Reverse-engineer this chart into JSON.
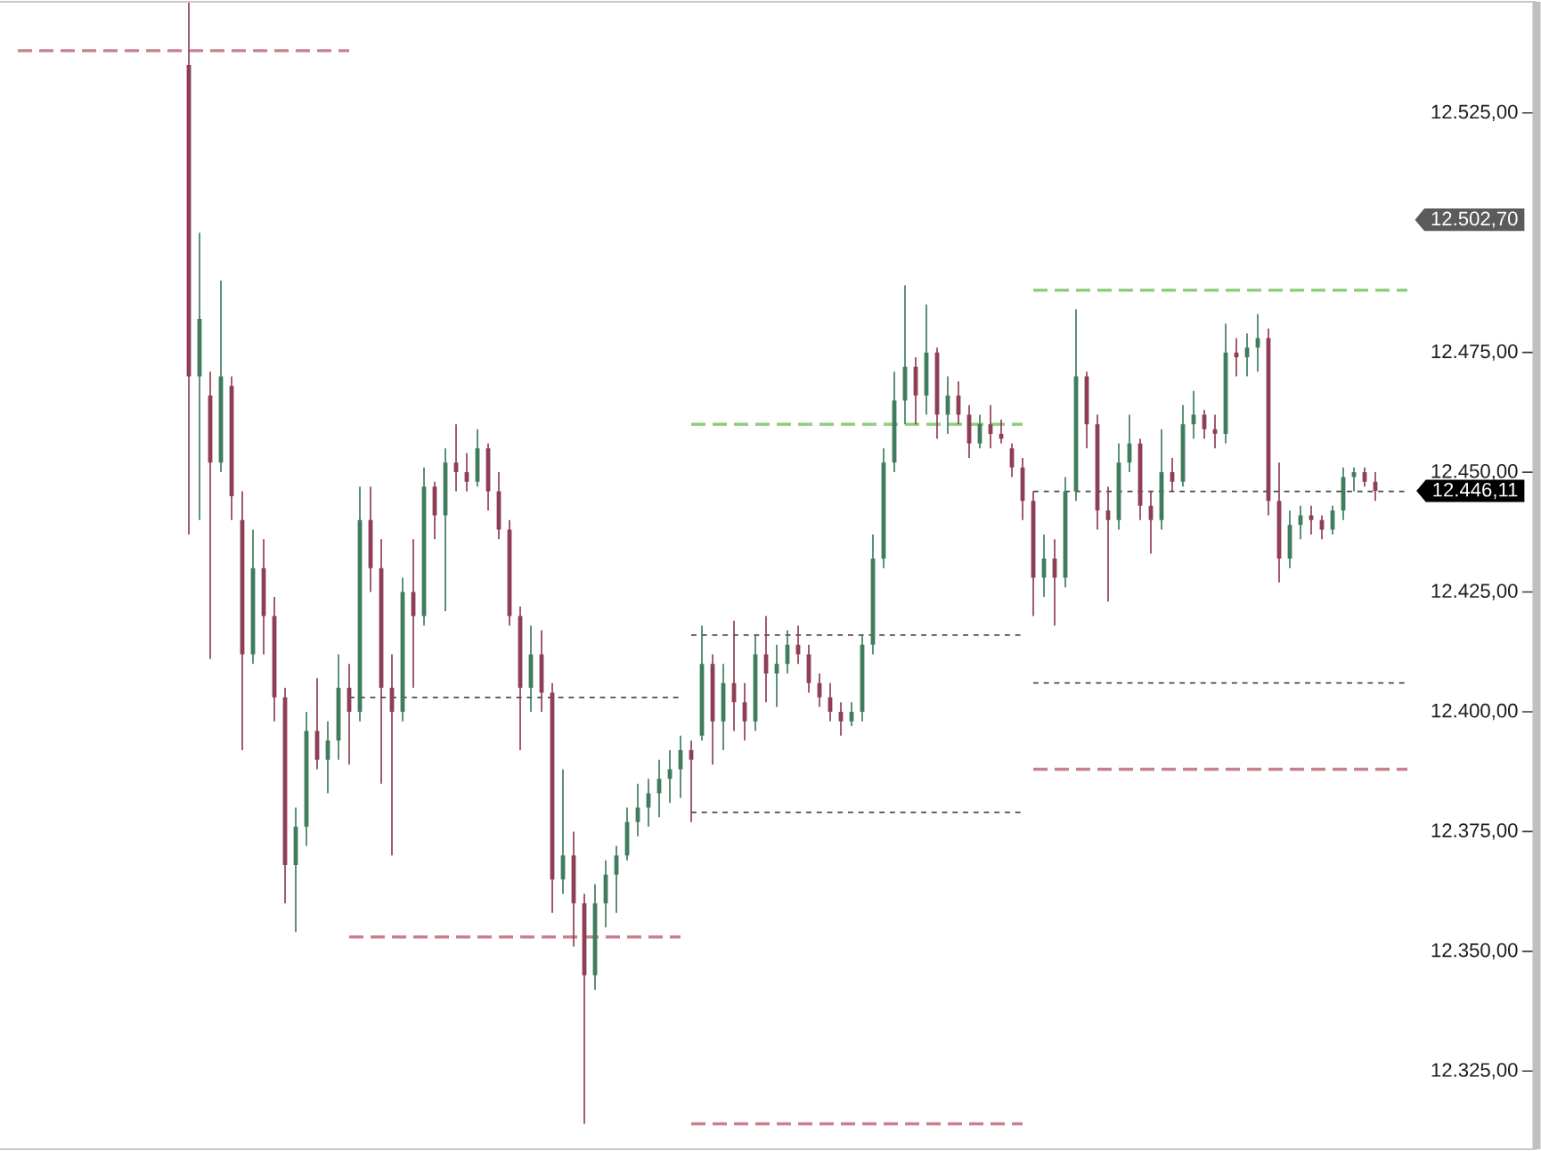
{
  "chart_data": {
    "type": "candlestick",
    "categories": [
      null,
      null,
      null,
      null,
      null,
      null,
      null,
      null,
      null,
      null,
      null,
      null,
      null,
      null,
      null,
      null,
      null,
      null,
      null,
      null,
      null,
      null,
      null,
      null,
      null,
      null,
      null,
      null,
      null,
      null,
      null,
      null,
      null,
      null,
      null,
      null,
      null,
      null,
      null,
      null,
      null,
      null,
      null,
      null,
      null,
      null,
      null,
      null,
      null,
      null,
      null,
      null,
      null,
      null,
      null,
      null,
      null,
      null,
      null,
      null,
      null,
      null,
      null,
      null,
      null,
      null,
      null,
      null,
      null,
      null,
      null,
      null,
      null,
      null,
      null,
      null,
      null,
      null,
      null,
      null,
      null,
      null,
      null,
      null,
      null,
      null,
      null,
      null,
      null,
      null,
      null,
      null,
      null,
      null,
      null,
      null,
      null,
      null,
      null,
      null,
      null,
      null,
      null,
      null,
      null,
      null,
      null,
      null,
      null,
      null,
      null,
      null,
      null,
      null,
      null,
      null,
      null,
      null,
      null,
      null,
      null,
      null,
      null,
      null,
      null,
      null,
      null,
      null,
      null,
      null,
      null
    ],
    "ohlc": [
      null,
      null,
      null,
      null,
      null,
      null,
      null,
      null,
      null,
      null,
      null,
      null,
      null,
      null,
      null,
      null,
      [
        12535,
        12548,
        12437,
        12470
      ],
      [
        12470,
        12500,
        12440,
        12482
      ],
      [
        12466,
        12471,
        12411,
        12452
      ],
      [
        12452,
        12490,
        12450,
        12470
      ],
      [
        12468,
        12470,
        12440,
        12445
      ],
      [
        12440,
        12446,
        12392,
        12412
      ],
      [
        12412,
        12438,
        12410,
        12430
      ],
      [
        12430,
        12436,
        12412,
        12420
      ],
      [
        12420,
        12424,
        12398,
        12403
      ],
      [
        12403,
        12405,
        12360,
        12368
      ],
      [
        12368,
        12380,
        12354,
        12376
      ],
      [
        12376,
        12400,
        12372,
        12396
      ],
      [
        12396,
        12407,
        12388,
        12390
      ],
      [
        12390,
        12398,
        12383,
        12394
      ],
      [
        12394,
        12412,
        12390,
        12405
      ],
      [
        12405,
        12410,
        12389,
        12400
      ],
      [
        12400,
        12447,
        12398,
        12440
      ],
      [
        12440,
        12447,
        12425,
        12430
      ],
      [
        12430,
        12436,
        12385,
        12405
      ],
      [
        12405,
        12412,
        12370,
        12400
      ],
      [
        12400,
        12428,
        12398,
        12425
      ],
      [
        12425,
        12436,
        12405,
        12420
      ],
      [
        12420,
        12451,
        12418,
        12447
      ],
      [
        12447,
        12448,
        12436,
        12441
      ],
      [
        12441,
        12455,
        12421,
        12452
      ],
      [
        12452,
        12460,
        12446,
        12450
      ],
      [
        12450,
        12454,
        12446,
        12448
      ],
      [
        12448,
        12459,
        12447,
        12455
      ],
      [
        12455,
        12456,
        12442,
        12446
      ],
      [
        12446,
        12450,
        12436,
        12438
      ],
      [
        12438,
        12440,
        12418,
        12420
      ],
      [
        12420,
        12422,
        12392,
        12405
      ],
      [
        12405,
        12418,
        12400,
        12412
      ],
      [
        12412,
        12417,
        12400,
        12404
      ],
      [
        12404,
        12406,
        12358,
        12365
      ],
      [
        12365,
        12388,
        12362,
        12370
      ],
      [
        12370,
        12375,
        12351,
        12360
      ],
      [
        12360,
        12362,
        12314,
        12345
      ],
      [
        12345,
        12364,
        12342,
        12360
      ],
      [
        12360,
        12369,
        12355,
        12366
      ],
      [
        12366,
        12372,
        12358,
        12370
      ],
      [
        12370,
        12380,
        12369,
        12377
      ],
      [
        12377,
        12385,
        12374,
        12380
      ],
      [
        12380,
        12386,
        12376,
        12383
      ],
      [
        12383,
        12390,
        12378,
        12386
      ],
      [
        12386,
        12392,
        12381,
        12388
      ],
      [
        12388,
        12395,
        12382,
        12392
      ],
      [
        12392,
        12394,
        12377,
        12390
      ],
      [
        12395,
        12418,
        12394,
        12410
      ],
      [
        12410,
        12412,
        12389,
        12398
      ],
      [
        12398,
        12410,
        12392,
        12406
      ],
      [
        12406,
        12419,
        12396,
        12402
      ],
      [
        12402,
        12406,
        12394,
        12398
      ],
      [
        12398,
        12416,
        12396,
        12412
      ],
      [
        12412,
        12420,
        12402,
        12408
      ],
      [
        12408,
        12414,
        12401,
        12410
      ],
      [
        12410,
        12417,
        12408,
        12414
      ],
      [
        12414,
        12418,
        12410,
        12412
      ],
      [
        12412,
        12414,
        12404,
        12406
      ],
      [
        12406,
        12408,
        12401,
        12403
      ],
      [
        12403,
        12406,
        12398,
        12400
      ],
      [
        12400,
        12402,
        12395,
        12398
      ],
      [
        12398,
        12402,
        12397,
        12400
      ],
      [
        12400,
        12416,
        12398,
        12414
      ],
      [
        12414,
        12437,
        12412,
        12432
      ],
      [
        12432,
        12455,
        12430,
        12452
      ],
      [
        12452,
        12471,
        12450,
        12465
      ],
      [
        12465,
        12489,
        12460,
        12472
      ],
      [
        12472,
        12474,
        12460,
        12466
      ],
      [
        12466,
        12485,
        12462,
        12475
      ],
      [
        12475,
        12476,
        12457,
        12462
      ],
      [
        12462,
        12470,
        12458,
        12466
      ],
      [
        12466,
        12469,
        12460,
        12462
      ],
      [
        12462,
        12464,
        12453,
        12456
      ],
      [
        12456,
        12462,
        12455,
        12460
      ],
      [
        12460,
        12464,
        12455,
        12458
      ],
      [
        12458,
        12461,
        12456,
        12457
      ],
      [
        12455,
        12456,
        12449,
        12451
      ],
      [
        12451,
        12453,
        12440,
        12444
      ],
      [
        12444,
        12446,
        12420,
        12428
      ],
      [
        12428,
        12437,
        12424,
        12432
      ],
      [
        12432,
        12436,
        12418,
        12428
      ],
      [
        12428,
        12449,
        12426,
        12446
      ],
      [
        12446,
        12484,
        12444,
        12470
      ],
      [
        12470,
        12471,
        12455,
        12460
      ],
      [
        12460,
        12462,
        12438,
        12442
      ],
      [
        12442,
        12447,
        12423,
        12440
      ],
      [
        12440,
        12456,
        12438,
        12452
      ],
      [
        12452,
        12462,
        12450,
        12456
      ],
      [
        12456,
        12457,
        12440,
        12443
      ],
      [
        12443,
        12446,
        12433,
        12440
      ],
      [
        12440,
        12459,
        12438,
        12450
      ],
      [
        12450,
        12453,
        12446,
        12448
      ],
      [
        12448,
        12464,
        12447,
        12460
      ],
      [
        12460,
        12467,
        12457,
        12462
      ],
      [
        12462,
        12463,
        12457,
        12459
      ],
      [
        12459,
        12462,
        12455,
        12458
      ],
      [
        12458,
        12481,
        12456,
        12475
      ],
      [
        12475,
        12478,
        12470,
        12474
      ],
      [
        12474,
        12479,
        12470,
        12476
      ],
      [
        12476,
        12483,
        12471,
        12478
      ],
      [
        12478,
        12480,
        12441,
        12444
      ],
      [
        12444,
        12452,
        12427,
        12432
      ],
      [
        12432,
        12442,
        12430,
        12439
      ],
      [
        12439,
        12443,
        12436,
        12441
      ],
      [
        12441,
        12443,
        12437,
        12440
      ],
      [
        12440,
        12441,
        12436,
        12438
      ],
      [
        12438,
        12443,
        12437,
        12442
      ],
      [
        12442,
        12451,
        12440,
        12449
      ],
      [
        12449,
        12451,
        12446,
        12450
      ],
      [
        12450,
        12451,
        12447,
        12448
      ],
      [
        12448,
        12450,
        12444,
        12446.11
      ],
      null,
      null,
      null
    ],
    "colors": [
      null,
      null,
      null,
      null,
      null,
      null,
      null,
      null,
      null,
      null,
      null,
      null,
      null,
      null,
      null,
      null,
      "#8f3f55",
      "#3f7d5e",
      "#8f3f55",
      "#3f7d5e",
      "#8f3f55",
      "#8f3f55",
      "#3f7d5e",
      "#8f3f55",
      "#8f3f55",
      "#8f3f55",
      "#3f7d5e",
      "#3f7d5e",
      "#8f3f55",
      "#3f7d5e",
      "#3f7d5e",
      "#8f3f55",
      "#3f7d5e",
      "#8f3f55",
      "#8f3f55",
      "#8f3f55",
      "#3f7d5e",
      "#8f3f55",
      "#3f7d5e",
      "#8f3f55",
      "#3f7d5e",
      "#8f3f55",
      "#8f3f55",
      "#3f7d5e",
      "#8f3f55",
      "#8f3f55",
      "#8f3f55",
      "#8f3f55",
      "#3f7d5e",
      "#8f3f55",
      "#8f3f55",
      "#3f7d5e",
      "#8f3f55",
      "#8f3f55",
      "#3f7d5e",
      "#3f7d5e",
      "#3f7d5e",
      "#3f7d5e",
      "#3f7d5e",
      "#3f7d5e",
      "#3f7d5e",
      "#3f7d5e",
      "#3f7d5e",
      "#8f3f55",
      "#3f7d5e",
      "#8f3f55",
      "#3f7d5e",
      "#8f3f55",
      "#8f3f55",
      "#3f7d5e",
      "#8f3f55",
      "#3f7d5e",
      "#3f7d5e",
      "#8f3f55",
      "#8f3f55",
      "#8f3f55",
      "#8f3f55",
      "#8f3f55",
      "#3f7d5e",
      "#3f7d5e",
      "#3f7d5e",
      "#3f7d5e",
      "#3f7d5e",
      "#3f7d5e",
      "#8f3f55",
      "#3f7d5e",
      "#8f3f55",
      "#3f7d5e",
      "#8f3f55",
      "#8f3f55",
      "#3f7d5e",
      "#8f3f55",
      "#8f3f55",
      "#8f3f55",
      "#8f3f55",
      "#8f3f55",
      "#3f7d5e",
      "#8f3f55",
      "#3f7d5e",
      "#3f7d5e",
      "#8f3f55",
      "#8f3f55",
      "#8f3f55",
      "#3f7d5e",
      "#3f7d5e",
      "#8f3f55",
      "#8f3f55",
      "#3f7d5e",
      "#8f3f55",
      "#3f7d5e",
      "#3f7d5e",
      "#8f3f55",
      "#8f3f55",
      "#3f7d5e",
      "#8f3f55",
      "#3f7d5e",
      "#3f7d5e",
      "#8f3f55",
      "#8f3f55",
      "#3f7d5e",
      "#3f7d5e",
      "#8f3f55",
      "#8f3f55",
      "#3f7d5e",
      "#3f7d5e",
      "#3f7d5e",
      "#8f3f55",
      "#8f3f55",
      null,
      null,
      null
    ],
    "series": [
      {
        "type": "line",
        "color": "#c8808c",
        "line_style": "dashed",
        "values": [
          12538,
          12538,
          12538,
          12538,
          12538,
          12538,
          12538,
          12538,
          12538,
          12538,
          12538,
          12538,
          12538,
          12538,
          12538,
          12538,
          12538,
          12538,
          12538,
          12538,
          12538,
          12538,
          12538,
          12538,
          12538,
          12538,
          12538,
          12538,
          12538,
          12538,
          12538,
          12538,
          null,
          null,
          null,
          null,
          null,
          null,
          null,
          null,
          null,
          null,
          null,
          null,
          null,
          null,
          null,
          null,
          null,
          null,
          null,
          null,
          null,
          null,
          null,
          null,
          null,
          null,
          null,
          null,
          null,
          null,
          null,
          null,
          null,
          null,
          null,
          null,
          null,
          null,
          null,
          null,
          null,
          null,
          null,
          null,
          null,
          null,
          null,
          null,
          null,
          null,
          null,
          null,
          null,
          null,
          null,
          null,
          null,
          null,
          null,
          null,
          null,
          null,
          null,
          null,
          null,
          null,
          null,
          null,
          null,
          null,
          null,
          null,
          null,
          null,
          null,
          null,
          null,
          null,
          null,
          null,
          null,
          null,
          null,
          null,
          null,
          null,
          null,
          null,
          null,
          null,
          null,
          null,
          null,
          null,
          null,
          null,
          null,
          null,
          null
        ]
      },
      {
        "type": "line",
        "color": "#4d4d4d",
        "line_style": "dotted",
        "values": [
          null,
          null,
          null,
          null,
          null,
          null,
          null,
          null,
          null,
          null,
          null,
          null,
          null,
          null,
          null,
          null,
          null,
          null,
          null,
          null,
          null,
          null,
          null,
          null,
          null,
          null,
          null,
          null,
          null,
          null,
          null,
          12403,
          12403,
          12403,
          12403,
          12403,
          12403,
          12403,
          12403,
          12403,
          12403,
          12403,
          12403,
          12403,
          12403,
          12403,
          12403,
          12403,
          12403,
          12403,
          12403,
          12403,
          12403,
          12403,
          12403,
          12403,
          12403,
          12403,
          12403,
          12403,
          12403,
          12403,
          12403,
          null,
          null,
          null,
          null,
          null,
          null,
          null,
          null,
          null,
          null,
          null,
          null,
          null,
          null,
          null,
          null,
          null,
          null,
          null,
          null,
          null,
          null,
          null,
          null,
          null,
          null,
          null,
          null,
          null,
          null,
          null,
          null,
          null,
          null,
          null,
          null,
          null,
          null,
          null,
          null,
          null,
          null,
          null,
          null,
          null,
          null,
          null,
          null,
          null,
          null,
          null,
          null,
          null,
          null,
          null,
          null,
          null,
          null,
          null,
          null,
          null,
          null,
          null,
          null,
          null,
          null,
          null,
          null
        ]
      },
      {
        "type": "line",
        "color": "#c8808c",
        "line_style": "dashed",
        "values": [
          null,
          null,
          null,
          null,
          null,
          null,
          null,
          null,
          null,
          null,
          null,
          null,
          null,
          null,
          null,
          null,
          null,
          null,
          null,
          null,
          null,
          null,
          null,
          null,
          null,
          null,
          null,
          null,
          null,
          null,
          null,
          12353,
          12353,
          12353,
          12353,
          12353,
          12353,
          12353,
          12353,
          12353,
          12353,
          12353,
          12353,
          12353,
          12353,
          12353,
          12353,
          12353,
          12353,
          12353,
          12353,
          12353,
          12353,
          12353,
          12353,
          12353,
          12353,
          12353,
          12353,
          12353,
          12353,
          12353,
          12353,
          null,
          null,
          null,
          null,
          null,
          null,
          null,
          null,
          null,
          null,
          null,
          null,
          null,
          null,
          null,
          null,
          null,
          null,
          null,
          null,
          null,
          null,
          null,
          null,
          null,
          null,
          null,
          null,
          null,
          null,
          null,
          null,
          null,
          null,
          null,
          null,
          null,
          null,
          null,
          null,
          null,
          null,
          null,
          null,
          null,
          null,
          null,
          null,
          null,
          null,
          null,
          null,
          null,
          null,
          null,
          null,
          null,
          null,
          null,
          null,
          null,
          null,
          null,
          null,
          null,
          null,
          null,
          null
        ]
      },
      {
        "type": "line",
        "color": "#8fce7e",
        "line_style": "dashed",
        "values": [
          null,
          null,
          null,
          null,
          null,
          null,
          null,
          null,
          null,
          null,
          null,
          null,
          null,
          null,
          null,
          null,
          null,
          null,
          null,
          null,
          null,
          null,
          null,
          null,
          null,
          null,
          null,
          null,
          null,
          null,
          null,
          null,
          null,
          null,
          null,
          null,
          null,
          null,
          null,
          null,
          null,
          null,
          null,
          null,
          null,
          null,
          null,
          null,
          null,
          null,
          null,
          null,
          null,
          null,
          null,
          null,
          null,
          null,
          null,
          null,
          null,
          null,
          null,
          12460,
          12460,
          12460,
          12460,
          12460,
          12460,
          12460,
          12460,
          12460,
          12460,
          12460,
          12460,
          12460,
          12460,
          12460,
          12460,
          12460,
          12460,
          12460,
          12460,
          12460,
          12460,
          12460,
          12460,
          12460,
          12460,
          12460,
          12460,
          12460,
          12460,
          12460,
          12460,
          null,
          null,
          null,
          null,
          null,
          null,
          null,
          null,
          null,
          null,
          null,
          null,
          null,
          null,
          null,
          null,
          null,
          null,
          null,
          null,
          null,
          null,
          null,
          null,
          null,
          null,
          null,
          null,
          null,
          null,
          null,
          null,
          null,
          null,
          null,
          null
        ]
      },
      {
        "type": "line",
        "color": "#4d4d4d",
        "line_style": "dotted",
        "values": [
          null,
          null,
          null,
          null,
          null,
          null,
          null,
          null,
          null,
          null,
          null,
          null,
          null,
          null,
          null,
          null,
          null,
          null,
          null,
          null,
          null,
          null,
          null,
          null,
          null,
          null,
          null,
          null,
          null,
          null,
          null,
          null,
          null,
          null,
          null,
          null,
          null,
          null,
          null,
          null,
          null,
          null,
          null,
          null,
          null,
          null,
          null,
          null,
          null,
          null,
          null,
          null,
          null,
          null,
          null,
          null,
          null,
          null,
          null,
          null,
          null,
          null,
          null,
          12416,
          12416,
          12416,
          12416,
          12416,
          12416,
          12416,
          12416,
          12416,
          12416,
          12416,
          12416,
          12416,
          12416,
          12416,
          12416,
          12416,
          12416,
          12416,
          12416,
          12416,
          12416,
          12416,
          12416,
          12416,
          12416,
          12416,
          12416,
          12416,
          12416,
          12416,
          12416,
          null,
          null,
          null,
          null,
          null,
          null,
          null,
          null,
          null,
          null,
          null,
          null,
          null,
          null,
          null,
          null,
          null,
          null,
          null,
          null,
          null,
          null,
          null,
          null,
          null,
          null,
          null,
          null,
          null,
          null,
          null,
          null,
          null,
          null,
          null,
          null
        ]
      },
      {
        "type": "line",
        "color": "#4d4d4d",
        "line_style": "dotted",
        "values": [
          null,
          null,
          null,
          null,
          null,
          null,
          null,
          null,
          null,
          null,
          null,
          null,
          null,
          null,
          null,
          null,
          null,
          null,
          null,
          null,
          null,
          null,
          null,
          null,
          null,
          null,
          null,
          null,
          null,
          null,
          null,
          null,
          null,
          null,
          null,
          null,
          null,
          null,
          null,
          null,
          null,
          null,
          null,
          null,
          null,
          null,
          null,
          null,
          null,
          null,
          null,
          null,
          null,
          null,
          null,
          null,
          null,
          null,
          null,
          null,
          null,
          null,
          null,
          12379,
          12379,
          12379,
          12379,
          12379,
          12379,
          12379,
          12379,
          12379,
          12379,
          12379,
          12379,
          12379,
          12379,
          12379,
          12379,
          12379,
          12379,
          12379,
          12379,
          12379,
          12379,
          12379,
          12379,
          12379,
          12379,
          12379,
          12379,
          12379,
          12379,
          12379,
          12379,
          null,
          null,
          null,
          null,
          null,
          null,
          null,
          null,
          null,
          null,
          null,
          null,
          null,
          null,
          null,
          null,
          null,
          null,
          null,
          null,
          null,
          null,
          null,
          null,
          null,
          null,
          null,
          null,
          null,
          null,
          null,
          null,
          null,
          null,
          null,
          null
        ]
      },
      {
        "type": "line",
        "color": "#c8808c",
        "line_style": "dashed",
        "values": [
          null,
          null,
          null,
          null,
          null,
          null,
          null,
          null,
          null,
          null,
          null,
          null,
          null,
          null,
          null,
          null,
          null,
          null,
          null,
          null,
          null,
          null,
          null,
          null,
          null,
          null,
          null,
          null,
          null,
          null,
          null,
          null,
          null,
          null,
          null,
          null,
          null,
          null,
          null,
          null,
          null,
          null,
          null,
          null,
          null,
          null,
          null,
          null,
          null,
          null,
          null,
          null,
          null,
          null,
          null,
          null,
          null,
          null,
          null,
          null,
          null,
          null,
          null,
          12314,
          12314,
          12314,
          12314,
          12314,
          12314,
          12314,
          12314,
          12314,
          12314,
          12314,
          12314,
          12314,
          12314,
          12314,
          12314,
          12314,
          12314,
          12314,
          12314,
          12314,
          12314,
          12314,
          12314,
          12314,
          12314,
          12314,
          12314,
          12314,
          12314,
          12314,
          12314,
          null,
          null,
          null,
          null,
          null,
          null,
          null,
          null,
          null,
          null,
          null,
          null,
          null,
          null,
          null,
          null,
          null,
          null,
          null,
          null,
          null,
          null,
          null,
          null,
          null,
          null,
          null,
          null,
          null,
          null,
          null,
          null,
          null,
          null,
          null,
          null
        ]
      },
      {
        "type": "line",
        "color": "#8fce7e",
        "line_style": "dashed",
        "values": [
          null,
          null,
          null,
          null,
          null,
          null,
          null,
          null,
          null,
          null,
          null,
          null,
          null,
          null,
          null,
          null,
          null,
          null,
          null,
          null,
          null,
          null,
          null,
          null,
          null,
          null,
          null,
          null,
          null,
          null,
          null,
          null,
          null,
          null,
          null,
          null,
          null,
          null,
          null,
          null,
          null,
          null,
          null,
          null,
          null,
          null,
          null,
          null,
          null,
          null,
          null,
          null,
          null,
          null,
          null,
          null,
          null,
          null,
          null,
          null,
          null,
          null,
          null,
          null,
          null,
          null,
          null,
          null,
          null,
          null,
          null,
          null,
          null,
          null,
          null,
          null,
          null,
          null,
          null,
          null,
          null,
          null,
          null,
          null,
          null,
          null,
          null,
          null,
          null,
          null,
          null,
          null,
          null,
          null,
          null,
          12488,
          12488,
          12488,
          12488,
          12488,
          12488,
          12488,
          12488,
          12488,
          12488,
          12488,
          12488,
          12488,
          12488,
          12488,
          12488,
          12488,
          12488,
          12488,
          12488,
          12488,
          12488,
          12488,
          12488,
          12488,
          12488,
          12488,
          12488,
          12488,
          12488,
          12488,
          12488,
          12488,
          12488,
          12488,
          12488
        ]
      },
      {
        "type": "line",
        "color": "#4d4d4d",
        "line_style": "dotted",
        "values": [
          null,
          null,
          null,
          null,
          null,
          null,
          null,
          null,
          null,
          null,
          null,
          null,
          null,
          null,
          null,
          null,
          null,
          null,
          null,
          null,
          null,
          null,
          null,
          null,
          null,
          null,
          null,
          null,
          null,
          null,
          null,
          null,
          null,
          null,
          null,
          null,
          null,
          null,
          null,
          null,
          null,
          null,
          null,
          null,
          null,
          null,
          null,
          null,
          null,
          null,
          null,
          null,
          null,
          null,
          null,
          null,
          null,
          null,
          null,
          null,
          null,
          null,
          null,
          null,
          null,
          null,
          null,
          null,
          null,
          null,
          null,
          null,
          null,
          null,
          null,
          null,
          null,
          null,
          null,
          null,
          null,
          null,
          null,
          null,
          null,
          null,
          null,
          null,
          null,
          null,
          null,
          null,
          null,
          null,
          null,
          12446,
          12446,
          12446,
          12446,
          12446,
          12446,
          12446,
          12446,
          12446,
          12446,
          12446,
          12446,
          12446,
          12446,
          12446,
          12446,
          12446,
          12446,
          12446,
          12446,
          12446,
          12446,
          12446,
          12446,
          12446,
          12446,
          12446,
          12446,
          12446,
          12446,
          12446,
          12446,
          12446,
          12446,
          12446,
          12446
        ]
      },
      {
        "type": "line",
        "color": "#4d4d4d",
        "line_style": "dotted",
        "values": [
          null,
          null,
          null,
          null,
          null,
          null,
          null,
          null,
          null,
          null,
          null,
          null,
          null,
          null,
          null,
          null,
          null,
          null,
          null,
          null,
          null,
          null,
          null,
          null,
          null,
          null,
          null,
          null,
          null,
          null,
          null,
          null,
          null,
          null,
          null,
          null,
          null,
          null,
          null,
          null,
          null,
          null,
          null,
          null,
          null,
          null,
          null,
          null,
          null,
          null,
          null,
          null,
          null,
          null,
          null,
          null,
          null,
          null,
          null,
          null,
          null,
          null,
          null,
          null,
          null,
          null,
          null,
          null,
          null,
          null,
          null,
          null,
          null,
          null,
          null,
          null,
          null,
          null,
          null,
          null,
          null,
          null,
          null,
          null,
          null,
          null,
          null,
          null,
          null,
          null,
          null,
          null,
          null,
          null,
          null,
          12406,
          12406,
          12406,
          12406,
          12406,
          12406,
          12406,
          12406,
          12406,
          12406,
          12406,
          12406,
          12406,
          12406,
          12406,
          12406,
          12406,
          12406,
          12406,
          12406,
          12406,
          12406,
          12406,
          12406,
          12406,
          12406,
          12406,
          12406,
          12406,
          12406,
          12406,
          12406,
          12406,
          12406,
          12406,
          12406
        ]
      },
      {
        "type": "line",
        "color": "#c8808c",
        "line_style": "dashed",
        "values": [
          null,
          null,
          null,
          null,
          null,
          null,
          null,
          null,
          null,
          null,
          null,
          null,
          null,
          null,
          null,
          null,
          null,
          null,
          null,
          null,
          null,
          null,
          null,
          null,
          null,
          null,
          null,
          null,
          null,
          null,
          null,
          null,
          null,
          null,
          null,
          null,
          null,
          null,
          null,
          null,
          null,
          null,
          null,
          null,
          null,
          null,
          null,
          null,
          null,
          null,
          null,
          null,
          null,
          null,
          null,
          null,
          null,
          null,
          null,
          null,
          null,
          null,
          null,
          null,
          null,
          null,
          null,
          null,
          null,
          null,
          null,
          null,
          null,
          null,
          null,
          null,
          null,
          null,
          null,
          null,
          null,
          null,
          null,
          null,
          null,
          null,
          null,
          null,
          null,
          null,
          null,
          null,
          null,
          null,
          null,
          12388,
          12388,
          12388,
          12388,
          12388,
          12388,
          12388,
          12388,
          12388,
          12388,
          12388,
          12388,
          12388,
          12388,
          12388,
          12388,
          12388,
          12388,
          12388,
          12388,
          12388,
          12388,
          12388,
          12388,
          12388,
          12388,
          12388,
          12388,
          12388,
          12388,
          12388,
          12388,
          12388,
          12388,
          12388,
          12388
        ]
      }
    ],
    "ylim": [
      12308.7,
      12548.2
    ],
    "yticks": [
      {
        "value": 12325,
        "label": "12.325,00"
      },
      {
        "value": 12350,
        "label": "12.350,00"
      },
      {
        "value": 12375,
        "label": "12.375,00"
      },
      {
        "value": 12400,
        "label": "12.400,00"
      },
      {
        "value": 12425,
        "label": "12.425,00"
      },
      {
        "value": 12446.11,
        "label": "12.446,11"
      },
      {
        "value": 12450,
        "label": "12.450,00"
      },
      {
        "value": 12475,
        "label": "12.475,00"
      },
      {
        "value": 12502.7,
        "label": "12.502,70"
      },
      {
        "value": 12525,
        "label": "12.525,00"
      }
    ],
    "tick_labels": "y"
  }
}
